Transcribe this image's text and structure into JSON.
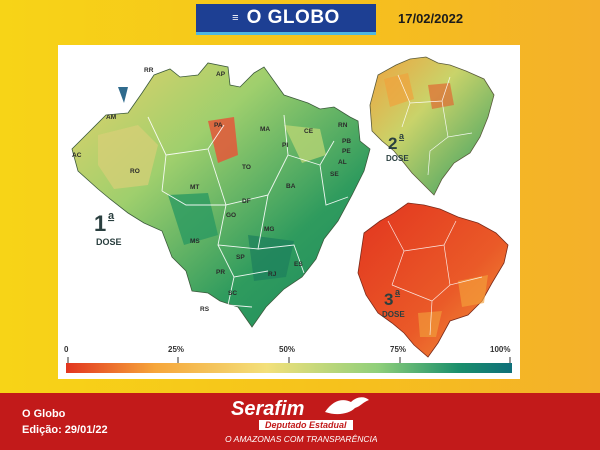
{
  "header": {
    "brand": "O GLOBO",
    "menu_icon": "menu-icon",
    "date": "17/02/2022"
  },
  "map": {
    "state_labels": [
      "RR",
      "AP",
      "AM",
      "PA",
      "MA",
      "CE",
      "RN",
      "PB",
      "PE",
      "AL",
      "SE",
      "PI",
      "AC",
      "RO",
      "TO",
      "BA",
      "MT",
      "DF",
      "GO",
      "MG",
      "MS",
      "ES",
      "SP",
      "RJ",
      "PR",
      "SC",
      "RS"
    ],
    "dose1": {
      "num": "1",
      "sup": "a",
      "word": "DOSE"
    },
    "dose2": {
      "num": "2",
      "sup": "a",
      "word": "DOSE"
    },
    "dose3": {
      "num": "3",
      "sup": "a",
      "word": "DOSE"
    }
  },
  "legend": {
    "ticks": [
      "0",
      "25%",
      "50%",
      "75%",
      "100%"
    ],
    "colors": [
      "#e2351f",
      "#f6a63a",
      "#f3e07a",
      "#8fcf7a",
      "#1a8f6b",
      "#0f6f7a"
    ]
  },
  "footer": {
    "source": "O Globo",
    "edition": "Edição: 29/01/22",
    "signature": {
      "name": "Serafim",
      "role": "Deputado Estadual",
      "slogan": "O AMAZONAS COM TRANSPARÊNCIA"
    }
  }
}
